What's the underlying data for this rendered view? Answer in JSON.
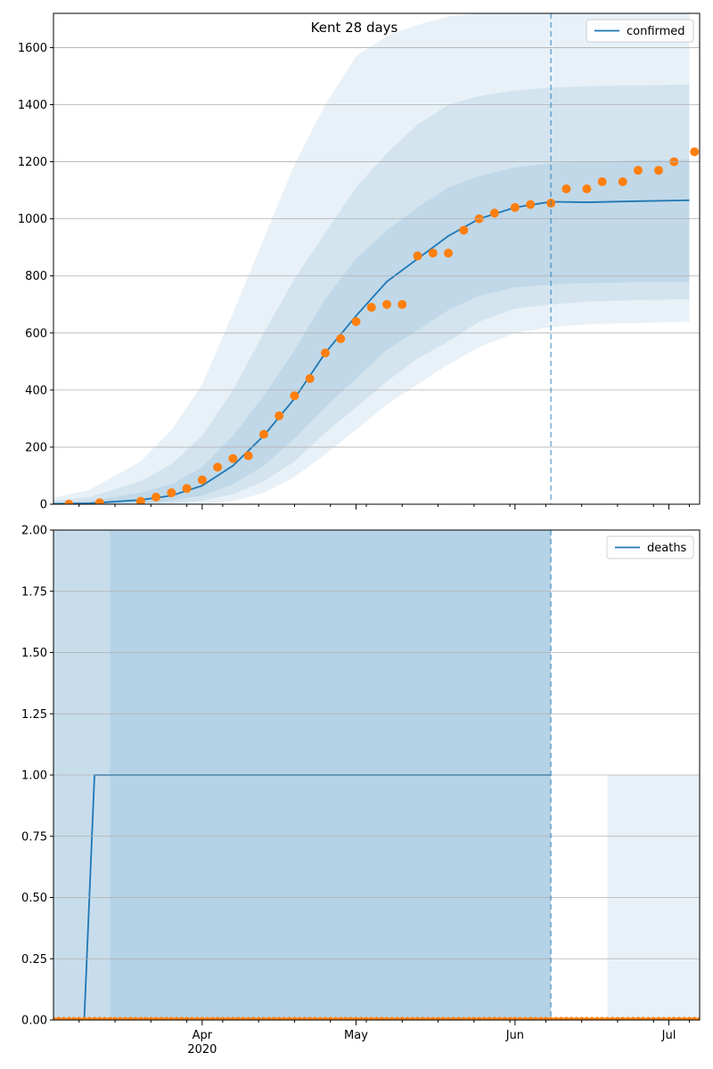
{
  "chart_data": [
    {
      "type": "line",
      "title": "Kent 28 days",
      "xlabel": "",
      "ylabel": "",
      "ylim": [
        0,
        1720
      ],
      "yticks": [
        0,
        200,
        400,
        600,
        800,
        1000,
        1200,
        1400,
        1600
      ],
      "grid": "horizontal",
      "legend_position": "top-right",
      "forecast_start": "2020-06-08",
      "series": [
        {
          "name": "confirmed",
          "kind": "fitted",
          "color": "#1f77b4",
          "x": [
            "2020-02-21",
            "2020-03-01",
            "2020-03-10",
            "2020-03-20",
            "2020-03-26",
            "2020-04-01",
            "2020-04-07",
            "2020-04-13",
            "2020-04-19",
            "2020-04-25",
            "2020-05-01",
            "2020-05-07",
            "2020-05-13",
            "2020-05-19",
            "2020-05-25",
            "2020-06-01",
            "2020-06-08",
            "2020-06-15",
            "2020-06-25",
            "2020-07-05"
          ],
          "values": [
            0,
            1,
            3,
            15,
            30,
            65,
            135,
            240,
            370,
            530,
            660,
            780,
            860,
            940,
            1000,
            1040,
            1060,
            1058,
            1062,
            1065
          ],
          "bands": [
            {
              "lower": [
                0,
                0,
                0,
                0,
                12,
                30,
                70,
                135,
                230,
                340,
                440,
                540,
                610,
                680,
                730,
                760,
                770,
                775,
                778,
                780
              ],
              "upper": [
                0,
                3,
                10,
                40,
                70,
                130,
                240,
                380,
                540,
                720,
                860,
                960,
                1040,
                1110,
                1150,
                1180,
                1195,
                1200,
                1205,
                1208
              ]
            },
            {
              "lower": [
                0,
                0,
                0,
                0,
                3,
                12,
                35,
                80,
                150,
                250,
                340,
                430,
                510,
                570,
                640,
                685,
                700,
                710,
                715,
                718
              ],
              "upper": [
                2,
                8,
                25,
                80,
                140,
                240,
                400,
                600,
                790,
                950,
                1110,
                1230,
                1330,
                1400,
                1430,
                1450,
                1460,
                1465,
                1468,
                1470
              ]
            },
            {
              "lower": [
                0,
                0,
                0,
                0,
                0,
                3,
                10,
                40,
                95,
                175,
                260,
                350,
                420,
                490,
                550,
                600,
                620,
                630,
                635,
                640
              ],
              "upper": [
                5,
                15,
                50,
                150,
                260,
                420,
                670,
                930,
                1190,
                1400,
                1570,
                1640,
                1680,
                1710,
                1720,
                1720,
                1720,
                1720,
                1720,
                1720
              ]
            }
          ]
        },
        {
          "name": "",
          "kind": "observed",
          "color": "#ff7f0e",
          "x": [
            "2020-02-21",
            "2020-03-06",
            "2020-03-12",
            "2020-03-20",
            "2020-03-23",
            "2020-03-26",
            "2020-03-29",
            "2020-04-01",
            "2020-04-04",
            "2020-04-07",
            "2020-04-10",
            "2020-04-13",
            "2020-04-16",
            "2020-04-19",
            "2020-04-22",
            "2020-04-25",
            "2020-04-28",
            "2020-05-01",
            "2020-05-04",
            "2020-05-07",
            "2020-05-10",
            "2020-05-13",
            "2020-05-16",
            "2020-05-19",
            "2020-05-22",
            "2020-05-25",
            "2020-05-28",
            "2020-06-01",
            "2020-06-04",
            "2020-06-08",
            "2020-06-11",
            "2020-06-15",
            "2020-06-18",
            "2020-06-22",
            "2020-06-25",
            "2020-06-29",
            "2020-07-02",
            "2020-07-06"
          ],
          "values": [
            0,
            0,
            5,
            10,
            25,
            40,
            55,
            85,
            130,
            160,
            170,
            245,
            310,
            380,
            440,
            530,
            580,
            640,
            690,
            700,
            700,
            870,
            880,
            880,
            960,
            1000,
            1020,
            1040,
            1050,
            1055,
            1105,
            1105,
            1130,
            1130,
            1170,
            1170,
            1200,
            1235
          ]
        }
      ]
    },
    {
      "type": "line",
      "title": "",
      "xlabel": "",
      "ylabel": "",
      "ylim": [
        0,
        2
      ],
      "yticks": [
        "0.00",
        "0.25",
        "0.50",
        "0.75",
        "1.00",
        "1.25",
        "1.50",
        "1.75",
        "2.00"
      ],
      "grid": "horizontal",
      "legend_position": "top-right",
      "forecast_start": "2020-06-08",
      "x_tick_labels": [
        {
          "date": "2020-04-01",
          "label": "Apr",
          "sub": "2020"
        },
        {
          "date": "2020-05-01",
          "label": "May",
          "sub": ""
        },
        {
          "date": "2020-06-01",
          "label": "Jun",
          "sub": ""
        },
        {
          "date": "2020-07-01",
          "label": "Jul",
          "sub": ""
        }
      ],
      "xlim": [
        "2020-03-03",
        "2020-07-07"
      ],
      "series": [
        {
          "name": "deaths",
          "kind": "fitted",
          "color": "#1f77b4",
          "x": [
            "2020-03-03",
            "2020-03-09",
            "2020-03-11",
            "2020-06-08"
          ],
          "values": [
            0,
            0,
            1,
            1
          ],
          "bands": [
            {
              "from": "2020-03-03",
              "to": "2020-06-08",
              "lower": 0,
              "upper": 2,
              "opacity": 0.25
            },
            {
              "from": "2020-03-14",
              "to": "2020-06-08",
              "lower": 0,
              "upper": 2,
              "opacity": 0.1
            },
            {
              "from": "2020-06-19",
              "to": "2020-07-07",
              "lower": 0,
              "upper": 1,
              "opacity": 0.1
            }
          ]
        },
        {
          "name": "",
          "kind": "observed",
          "color": "#ff7f0e",
          "x_range": [
            "2020-03-03",
            "2020-07-07"
          ],
          "values_constant": 0
        }
      ]
    }
  ]
}
